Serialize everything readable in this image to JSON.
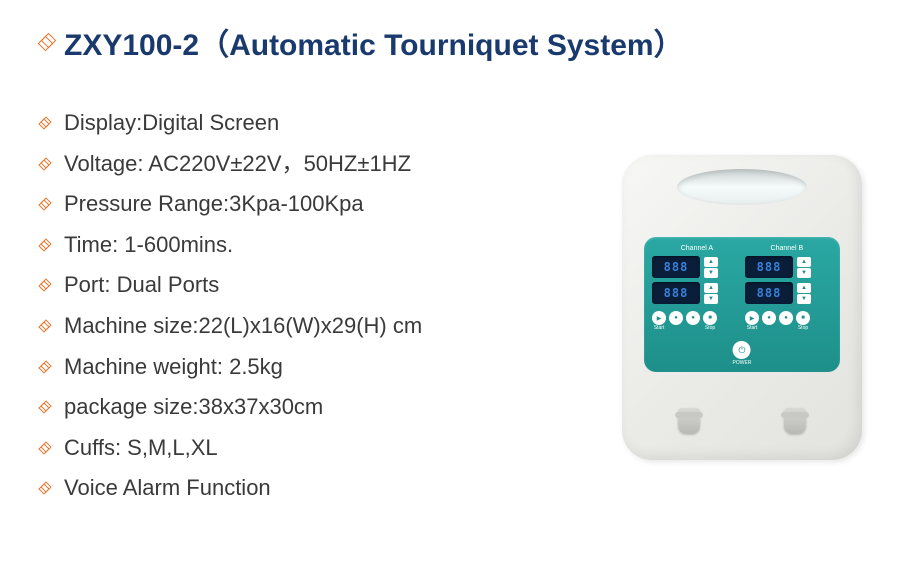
{
  "title": {
    "model": "ZXY100-2",
    "open_paren": "（",
    "name": "Automatic Tourniquet System",
    "close_paren": "）"
  },
  "specs": [
    "Display:Digital Screen",
    "Voltage: AC220V±22V，50HZ±1HZ",
    "Pressure Range:3Kpa-100Kpa",
    "Time: 1-600mins.",
    "Port: Dual Ports",
    "Machine size:22(L)x16(W)x29(H) cm",
    "Machine weight: 2.5kg",
    "package size:38x37x30cm",
    "Cuffs: S,M,L,XL",
    "Voice Alarm Function"
  ],
  "device": {
    "channel_a_label": "Channel A",
    "channel_b_label": "Channel B",
    "seg_value": "888",
    "power_label": "POWER",
    "start_label": "Start",
    "stop_label": "Stop"
  },
  "colors": {
    "title_text": "#1a3a6e",
    "bullet": "#e8762b",
    "spec_text": "#3a3a3a",
    "panel": "#2aa8a3"
  }
}
